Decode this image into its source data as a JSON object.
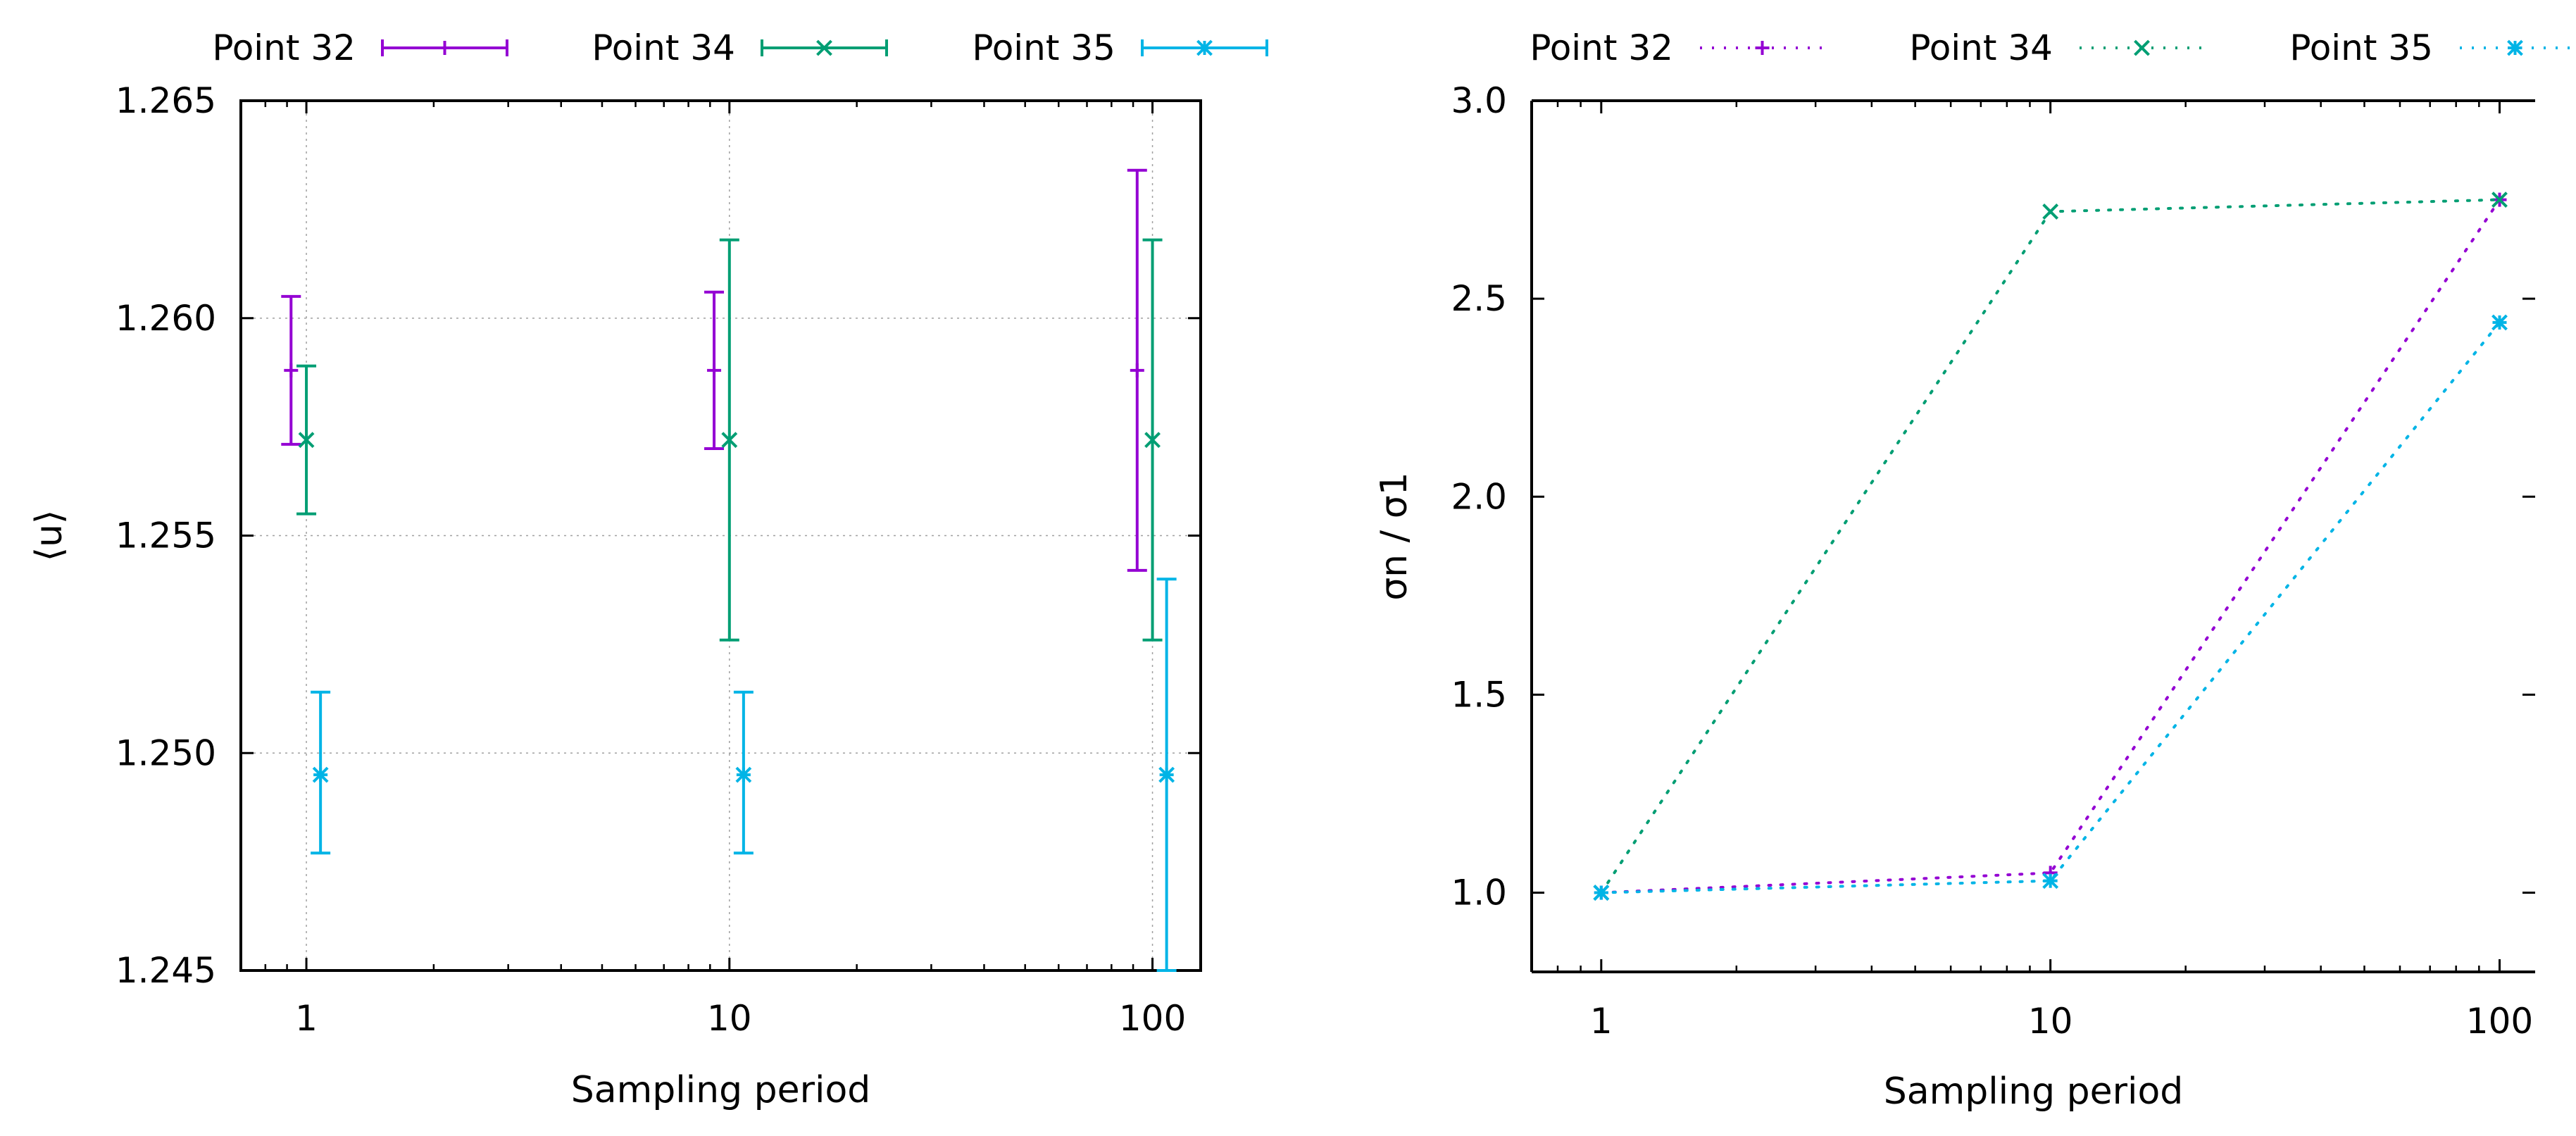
{
  "colors": {
    "point32": "#9400d3",
    "point34": "#009e73",
    "point35": "#00b4e6",
    "axis": "#000000",
    "grid": "#a0a0a0"
  },
  "chart_data": [
    {
      "type": "errorbar",
      "title": "",
      "xlabel": "Sampling period",
      "ylabel": "⟨u⟩",
      "xscale": "log",
      "xlim": [
        0.7,
        130
      ],
      "ylim": [
        1.245,
        1.265
      ],
      "x_ticks": [
        {
          "value": 1,
          "label": "1"
        },
        {
          "value": 10,
          "label": "10"
        },
        {
          "value": 100,
          "label": "100"
        }
      ],
      "y_ticks": [
        {
          "value": 1.245,
          "label": "1.245"
        },
        {
          "value": 1.25,
          "label": "1.250"
        },
        {
          "value": 1.255,
          "label": "1.255"
        },
        {
          "value": 1.26,
          "label": "1.260"
        },
        {
          "value": 1.265,
          "label": "1.265"
        }
      ],
      "grid": true,
      "legend_position": "top, above plot",
      "series": [
        {
          "name": "Point 32",
          "color_key": "point32",
          "marker": "plus",
          "points": [
            {
              "x": 0.92,
              "y": 1.2588,
              "ylow": 1.2571,
              "yhigh": 1.2605
            },
            {
              "x": 9.2,
              "y": 1.2588,
              "ylow": 1.257,
              "yhigh": 1.2606
            },
            {
              "x": 92,
              "y": 1.2588,
              "ylow": 1.2542,
              "yhigh": 1.2634
            }
          ]
        },
        {
          "name": "Point 34",
          "color_key": "point34",
          "marker": "x",
          "points": [
            {
              "x": 1.0,
              "y": 1.2572,
              "ylow": 1.2555,
              "yhigh": 1.2589
            },
            {
              "x": 10.0,
              "y": 1.2572,
              "ylow": 1.2526,
              "yhigh": 1.2618
            },
            {
              "x": 100,
              "y": 1.2572,
              "ylow": 1.2526,
              "yhigh": 1.2618
            }
          ]
        },
        {
          "name": "Point 35",
          "color_key": "point35",
          "marker": "star",
          "points": [
            {
              "x": 1.08,
              "y": 1.2495,
              "ylow": 1.2477,
              "yhigh": 1.2514
            },
            {
              "x": 10.8,
              "y": 1.2495,
              "ylow": 1.2477,
              "yhigh": 1.2514
            },
            {
              "x": 108,
              "y": 1.2495,
              "ylow": 1.245,
              "yhigh": 1.254
            }
          ]
        }
      ]
    },
    {
      "type": "line",
      "title": "",
      "xlabel": "Sampling period",
      "ylabel": "σn / σ1",
      "xscale": "log",
      "xlim": [
        0.7,
        120
      ],
      "ylim": [
        0.8,
        3.0
      ],
      "x_ticks": [
        {
          "value": 1,
          "label": "1"
        },
        {
          "value": 10,
          "label": "10"
        },
        {
          "value": 100,
          "label": "100"
        }
      ],
      "y_ticks": [
        {
          "value": 1.0,
          "label": "1.0"
        },
        {
          "value": 1.5,
          "label": "1.5"
        },
        {
          "value": 2.0,
          "label": "2.0"
        },
        {
          "value": 2.5,
          "label": "2.5"
        },
        {
          "value": 3.0,
          "label": "3.0"
        }
      ],
      "grid": false,
      "legend_position": "top, above plot",
      "series": [
        {
          "name": "Point 32",
          "color_key": "point32",
          "marker": "plus",
          "x": [
            1,
            10,
            100
          ],
          "y": [
            1.0,
            1.05,
            2.75
          ]
        },
        {
          "name": "Point 34",
          "color_key": "point34",
          "marker": "x",
          "x": [
            1,
            10,
            100
          ],
          "y": [
            1.0,
            2.72,
            2.75
          ]
        },
        {
          "name": "Point 35",
          "color_key": "point35",
          "marker": "star",
          "x": [
            1,
            10,
            100
          ],
          "y": [
            1.0,
            1.03,
            2.44
          ]
        }
      ]
    }
  ]
}
